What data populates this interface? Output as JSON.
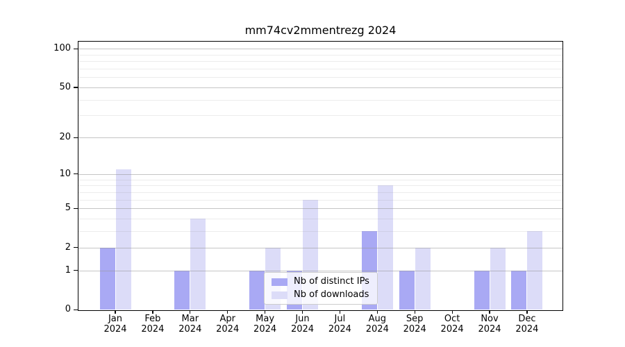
{
  "chart_data": {
    "type": "bar",
    "title": "mm74cv2mmentrezg 2024",
    "categories": [
      "Jan",
      "Feb",
      "Mar",
      "Apr",
      "May",
      "Jun",
      "Jul",
      "Aug",
      "Sep",
      "Oct",
      "Nov",
      "Dec"
    ],
    "x_sublabel": "2024",
    "series": [
      {
        "name": "Nb of distinct IPs",
        "key": "distinct-ips",
        "color": "#a9a9f4",
        "values": [
          2,
          0,
          1,
          0,
          1,
          1,
          0,
          3,
          1,
          0,
          1,
          1
        ]
      },
      {
        "name": "Nb of downloads",
        "key": "downloads",
        "color": "#dcdcf8",
        "values": [
          11,
          0,
          4,
          0,
          2,
          6,
          0,
          8,
          2,
          0,
          2,
          3
        ]
      }
    ],
    "yscale": "log1p",
    "ylim": [
      0,
      114
    ],
    "yticks": [
      0,
      1,
      2,
      5,
      10,
      20,
      50,
      100
    ],
    "minor_gridlines": [
      3,
      4,
      6,
      7,
      8,
      9,
      30,
      40,
      60,
      70,
      80,
      90
    ],
    "grid": "on",
    "legend_position": "lower-center-inside"
  },
  "colors": {
    "grid_major": "rgba(150,150,150,0.55)",
    "grid_minor": "rgba(150,150,150,0.18)",
    "axis": "#000000",
    "background": "#ffffff",
    "legend_border": "#cccccc"
  }
}
